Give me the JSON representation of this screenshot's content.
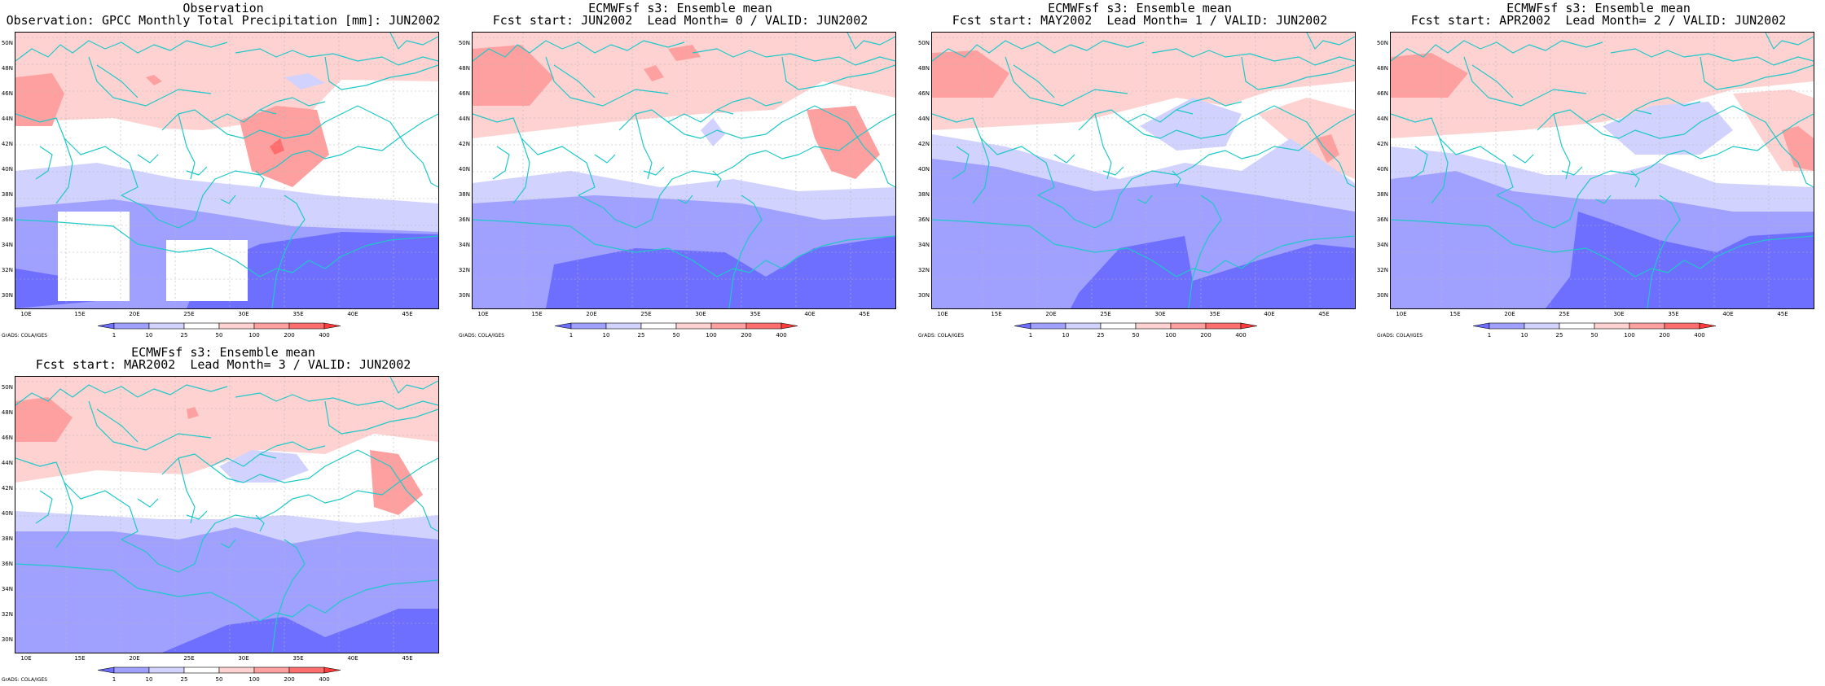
{
  "panels": [
    {
      "line1": "Observation",
      "line2": "Observation: GPCC Monthly Total Precipitation [mm]: JUN2002"
    },
    {
      "line1": "ECMWFsf s3: Ensemble mean",
      "line2": "Fcst start: JUN2002  Lead Month= 0 / VALID: JUN2002"
    },
    {
      "line1": "ECMWFsf s3: Ensemble mean",
      "line2": "Fcst start: MAY2002  Lead Month= 1 / VALID: JUN2002"
    },
    {
      "line1": "ECMWFsf s3: Ensemble mean",
      "line2": "Fcst start: APR2002  Lead Month= 2 / VALID: JUN2002"
    },
    {
      "line1": "ECMWFsf s3: Ensemble mean",
      "line2": "Fcst start: MAR2002  Lead Month= 3 / VALID: JUN2002"
    }
  ],
  "lat_labels": [
    "50N",
    "48N",
    "46N",
    "44N",
    "42N",
    "40N",
    "38N",
    "36N",
    "34N",
    "32N",
    "30N"
  ],
  "lon_labels": [
    "10E",
    "15E",
    "20E",
    "25E",
    "30E",
    "35E",
    "40E",
    "45E"
  ],
  "colorbar": {
    "labels": [
      "1",
      "10",
      "25",
      "50",
      "100",
      "200",
      "400"
    ],
    "colors": [
      "#6e6eff",
      "#a0a0ff",
      "#d2d2ff",
      "#ffffff",
      "#ffd2d2",
      "#ffa0a0",
      "#ff6e6e",
      "#ff3c3c"
    ]
  },
  "credit": "GrADS: COLA/IGES",
  "colors": {
    "coast": "#20c8c8",
    "grid": "#b4b4b4",
    "dry1": "#6e6eff",
    "dry2": "#a0a0ff",
    "dry3": "#d2d2ff",
    "wet1": "#ffd2d2",
    "wet2": "#ffa0a0",
    "wet3": "#ff6e6e"
  }
}
